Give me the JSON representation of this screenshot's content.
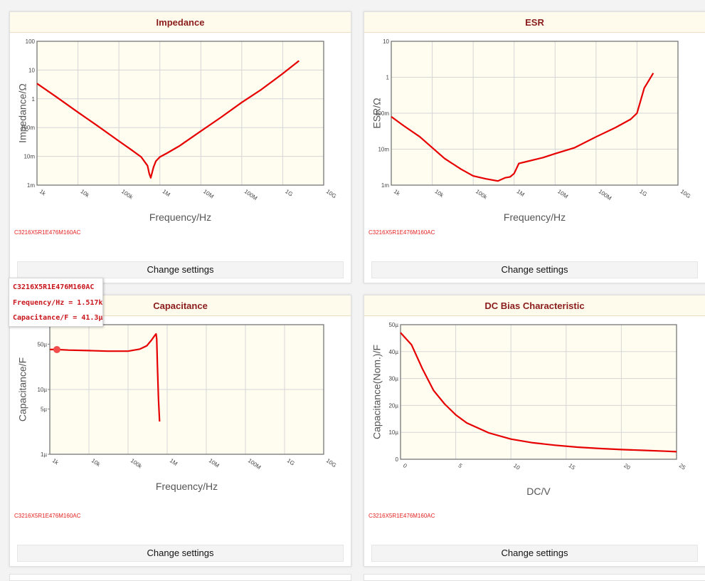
{
  "part_number": "C3216X5R1E476M160AC",
  "settings_label": "Change settings",
  "accent_color": "#e60000",
  "tooltip": {
    "part": "C3216X5R1E476M160AC",
    "freq": "Frequency/Hz = 1.517k",
    "cap": "Capacitance/F = 41.3µ"
  },
  "panels": [
    {
      "title": "Impedance",
      "xlabel": "Frequency/Hz",
      "ylabel": "Impedance/Ω",
      "xticks": [
        "1k",
        "10k",
        "100k",
        "1M",
        "10M",
        "100M",
        "1G",
        "10G"
      ],
      "yticks": [
        "100",
        "10",
        "1",
        "100m",
        "10m",
        "1m"
      ]
    },
    {
      "title": "ESR",
      "xlabel": "Frequency/Hz",
      "ylabel": "ESR/Ω",
      "xticks": [
        "1k",
        "10k",
        "100k",
        "1M",
        "10M",
        "100M",
        "1G",
        "10G"
      ],
      "yticks": [
        "10",
        "1",
        "100m",
        "10m",
        "1m"
      ]
    },
    {
      "title": "Capacitance",
      "xlabel": "Frequency/Hz",
      "ylabel": "Capacitance/F",
      "xticks": [
        "1k",
        "10k",
        "100k",
        "1M",
        "10M",
        "100M",
        "1G",
        "10G"
      ],
      "yticks": [
        "50µ",
        "10µ",
        "5µ",
        "1µ"
      ]
    },
    {
      "title": "DC Bias Characteristic",
      "xlabel": "DC/V",
      "ylabel": "Capacitance(Nom.)/F",
      "xticks": [
        "0",
        "5",
        "10",
        "15",
        "20",
        "25"
      ],
      "yticks": [
        "50µ",
        "40µ",
        "30µ",
        "20µ",
        "10µ",
        "0"
      ]
    }
  ],
  "chart_data": [
    {
      "type": "line",
      "title": "Impedance",
      "xlabel": "Frequency/Hz",
      "ylabel": "Impedance/Ω",
      "x_scale": "log",
      "y_scale": "log",
      "xlim": [
        1000,
        10000000000
      ],
      "ylim": [
        0.001,
        100
      ],
      "grid": true,
      "series": [
        {
          "x": [
            1000,
            3000,
            10000,
            30000,
            100000,
            200000,
            350000,
            500000,
            550000,
            600000,
            700000,
            800000,
            1000000,
            1500000,
            3000000,
            10000000,
            30000000,
            100000000,
            300000000,
            1000000000,
            2500000000
          ],
          "y": [
            3.4,
            1.15,
            0.34,
            0.115,
            0.034,
            0.017,
            0.0095,
            0.0047,
            0.0025,
            0.0018,
            0.0042,
            0.0068,
            0.0095,
            0.013,
            0.023,
            0.075,
            0.22,
            0.75,
            2.1,
            7.5,
            21
          ]
        }
      ]
    },
    {
      "type": "line",
      "title": "ESR",
      "xlabel": "Frequency/Hz",
      "ylabel": "ESR/Ω",
      "x_scale": "log",
      "y_scale": "log",
      "xlim": [
        1000,
        10000000000
      ],
      "ylim": [
        0.001,
        10
      ],
      "grid": true,
      "series": [
        {
          "x": [
            1000,
            2000,
            5000,
            10000,
            20000,
            50000,
            100000,
            200000,
            400000,
            600000,
            800000,
            1000000,
            1300000,
            2000000,
            5000000,
            10000000,
            30000000,
            100000000,
            300000000,
            700000000,
            1000000000,
            1500000000,
            2500000000
          ],
          "y": [
            0.08,
            0.045,
            0.022,
            0.011,
            0.0055,
            0.0028,
            0.0018,
            0.0015,
            0.0013,
            0.0016,
            0.0017,
            0.0021,
            0.004,
            0.0045,
            0.0058,
            0.0075,
            0.011,
            0.022,
            0.04,
            0.068,
            0.1,
            0.5,
            1.3
          ]
        }
      ]
    },
    {
      "type": "line",
      "title": "Capacitance",
      "xlabel": "Frequency/Hz",
      "ylabel": "Capacitance/F",
      "x_scale": "log",
      "y_scale": "log",
      "xlim": [
        1000,
        10000000000
      ],
      "ylim": [
        1e-06,
        0.0001
      ],
      "grid": true,
      "highlight": {
        "x": 1517,
        "y": 4.13e-05
      },
      "series": [
        {
          "x": [
            1000,
            1517,
            3000,
            10000,
            30000,
            100000,
            200000,
            300000,
            400000,
            480000,
            520000,
            540000,
            560000,
            600000,
            640000
          ],
          "y": [
            4.13e-05,
            4.13e-05,
            4.05e-05,
            3.98e-05,
            3.9e-05,
            3.9e-05,
            4.2e-05,
            4.7e-05,
            5.8e-05,
            6.8e-05,
            7.2e-05,
            6e-05,
            2.5e-05,
            7e-06,
            3.2e-06
          ]
        }
      ]
    },
    {
      "type": "line",
      "title": "DC Bias Characteristic",
      "xlabel": "DC/V",
      "ylabel": "Capacitance(Nom.)/F",
      "xlim": [
        0,
        25
      ],
      "ylim": [
        0,
        5e-05
      ],
      "grid": true,
      "series": [
        {
          "x": [
            0,
            1,
            2,
            3,
            4,
            5,
            6,
            8,
            10,
            12,
            14,
            16,
            18,
            20,
            22,
            24,
            25
          ],
          "y": [
            4.7e-05,
            4.25e-05,
            3.35e-05,
            2.55e-05,
            2.05e-05,
            1.65e-05,
            1.35e-05,
            9.8e-06,
            7.5e-06,
            6.1e-06,
            5.2e-06,
            4.5e-06,
            4e-06,
            3.6e-06,
            3.3e-06,
            3e-06,
            2.8e-06
          ]
        }
      ]
    }
  ]
}
